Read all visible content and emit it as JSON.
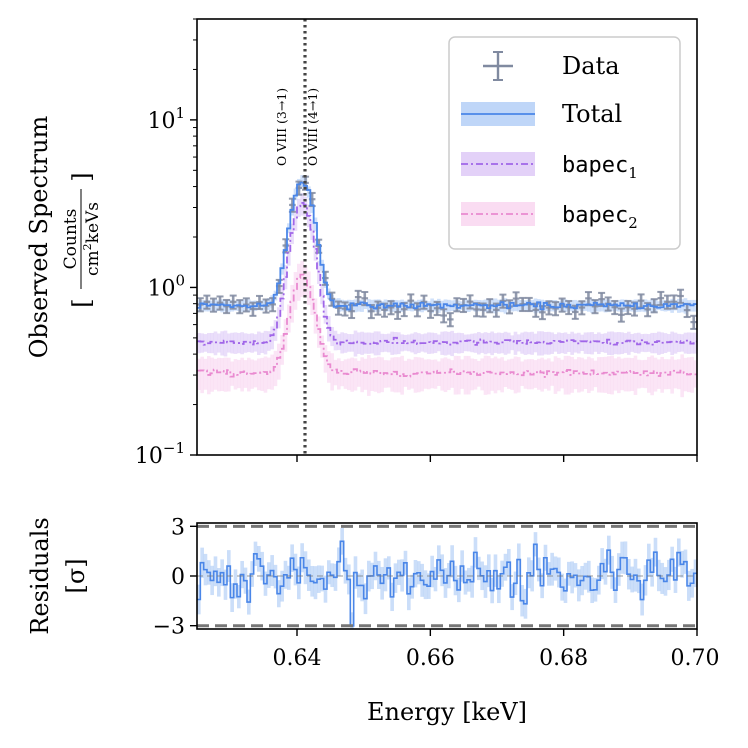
{
  "chart_data": [
    {
      "type": "line",
      "panel": "spectrum",
      "yscale": "log",
      "xlim": [
        0.625,
        0.7
      ],
      "ylim": [
        0.1,
        40
      ],
      "ylabel": "Observed Spectrum",
      "ylabel_units": {
        "bracket_open": "[",
        "numerator": "Counts",
        "denominator_main": "cm",
        "denominator_exp": "2",
        "denominator_rest": "keVs",
        "bracket_close": "]"
      },
      "y_ticks": [
        {
          "value": 0.1,
          "base": "10",
          "exp": "−1"
        },
        {
          "value": 1,
          "base": "10",
          "exp": "0"
        },
        {
          "value": 10,
          "base": "10",
          "exp": "1"
        }
      ],
      "x_ticks": [
        0.64,
        0.66,
        0.68,
        0.7
      ],
      "line_markers": [
        {
          "energy": 0.6406,
          "label": "O VIII (3→1)"
        },
        {
          "energy": 0.6412,
          "label": "O VIII (4→1)"
        }
      ],
      "model_params": {
        "line_center": 0.6408,
        "line_sigma": 0.00155,
        "total_continuum": 0.78,
        "total_line_peak": 3.55,
        "bapec1_continuum": 0.47,
        "bapec1_line_peak": 2.7,
        "bapec2_continuum": 0.31,
        "bapec2_line_peak": 0.85,
        "data_error_fraction": 0.09,
        "n_bins": 150
      },
      "series": [
        {
          "name": "Data",
          "style": "errorbar",
          "color": "#808aa0"
        },
        {
          "name": "Total",
          "style": "solid",
          "color": "#4a86e8",
          "band_color": "#a9c8f5"
        },
        {
          "name": "bapec",
          "sub": "1",
          "style": "dashdot",
          "color": "#a066e8",
          "band_color": "#d9c2f5"
        },
        {
          "name": "bapec",
          "sub": "2",
          "style": "dashdot",
          "color": "#e98ad0",
          "band_color": "#f8d0ee"
        }
      ],
      "legend": {
        "location": "top-right",
        "entries": [
          {
            "text": "Data",
            "mono": false,
            "sub": ""
          },
          {
            "text": "Total",
            "mono": false,
            "sub": ""
          },
          {
            "text": "bapec",
            "mono": true,
            "sub": "1"
          },
          {
            "text": "bapec",
            "mono": true,
            "sub": "2"
          }
        ]
      }
    },
    {
      "type": "line",
      "panel": "residuals",
      "xlim": [
        0.625,
        0.7
      ],
      "ylim": [
        -3.2,
        3.2
      ],
      "ylabel": "Residuals",
      "ylabel_units": "[σ]",
      "xlabel": "Energy [keV]",
      "y_ticks": [
        {
          "value": 3,
          "label": "3"
        },
        {
          "value": 0,
          "label": "0"
        },
        {
          "value": -3,
          "label": "−3"
        }
      ],
      "x_ticks": [
        {
          "value": 0.64,
          "label": "0.64"
        },
        {
          "value": 0.66,
          "label": "0.66"
        },
        {
          "value": 0.68,
          "label": "0.68"
        },
        {
          "value": 0.7,
          "label": "0.70"
        }
      ],
      "reference_lines": [
        3,
        -3
      ],
      "residual_amplitude": 0.75,
      "color": "#4a86e8",
      "band_color": "#a9c8f5"
    }
  ]
}
